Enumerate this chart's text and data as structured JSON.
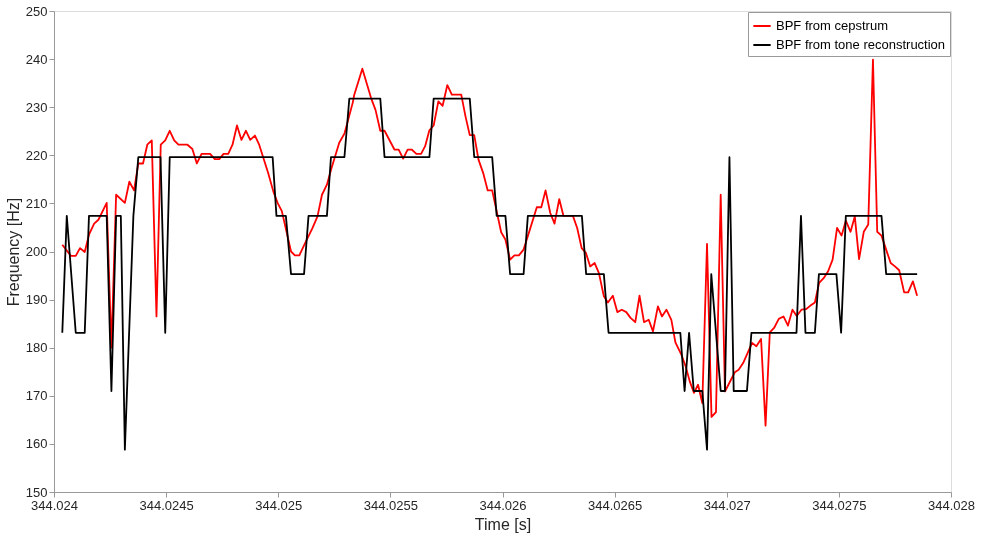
{
  "chart_data": {
    "type": "line",
    "xlabel": "Time [s]",
    "ylabel": "Frequency [Hz]",
    "xlim": [
      344.024,
      344.028
    ],
    "xticks": [
      344.024,
      344.0245,
      344.025,
      344.0255,
      344.026,
      344.0265,
      344.027,
      344.0275,
      344.028
    ],
    "ylim": [
      150,
      250
    ],
    "yticks": [
      150,
      160,
      170,
      180,
      190,
      200,
      210,
      220,
      230,
      240,
      250
    ],
    "legend": "top right",
    "series": [
      {
        "name": "BPF from cepstrum",
        "color": "#ff0000",
        "x": [
          344.024037,
          344.024075,
          344.024097,
          344.024116,
          344.024137,
          344.024156,
          344.024179,
          344.024198,
          344.024235,
          344.024256,
          344.024277,
          344.024316,
          344.024336,
          344.024357,
          344.024376,
          344.024397,
          344.024416,
          344.024436,
          344.024457,
          344.024476,
          344.024496,
          344.024516,
          344.024536,
          344.024555,
          344.024595,
          344.024617,
          344.024637,
          344.024658,
          344.024696,
          344.024717,
          344.024737,
          344.024756,
          344.024777,
          344.024796,
          344.024816,
          344.024836,
          344.024856,
          344.024875,
          344.024896,
          344.024915,
          344.024955,
          344.024978,
          344.024997,
          344.025016,
          344.025057,
          344.025074,
          344.025094,
          344.025116,
          344.025153,
          344.025175,
          344.025195,
          344.025217,
          344.025238,
          344.025272,
          344.025295,
          344.025332,
          344.025339,
          344.025375,
          344.025414,
          344.025434,
          344.025455,
          344.025474,
          344.025518,
          344.025537,
          344.025557,
          344.025577,
          344.025595,
          344.025616,
          344.025637,
          344.025655,
          344.025674,
          344.025693,
          344.025714,
          344.025733,
          344.025754,
          344.025774,
          344.025816,
          344.025835,
          344.025854,
          344.025874,
          344.025893,
          344.025914,
          344.025934,
          344.025954,
          344.025994,
          344.026013,
          344.026034,
          344.026053,
          344.026073,
          344.026094,
          344.026113,
          344.026153,
          344.026173,
          344.026192,
          344.026213,
          344.026232,
          344.026253,
          344.026272,
          344.026314,
          344.026333,
          344.026353,
          344.026372,
          344.026391,
          344.026411,
          344.02643,
          344.026452,
          344.02647,
          344.026492,
          344.026512,
          344.026532,
          344.026552,
          344.026571,
          344.026592,
          344.026611,
          344.026631,
          344.026652,
          344.026671,
          344.026693,
          344.026711,
          344.026731,
          344.026753,
          344.026771,
          344.026798,
          344.026817,
          344.026835,
          344.026854,
          344.026872,
          344.026891,
          344.026912,
          344.026932,
          344.026952,
          344.026973,
          344.026992,
          344.027036,
          344.027053,
          344.027073,
          344.027113,
          344.027132,
          344.027153,
          344.027173,
          344.027192,
          344.027211,
          344.027232,
          344.027253,
          344.027273,
          344.027293,
          344.027312,
          344.027333,
          344.027353,
          344.027372,
          344.027393,
          344.027412,
          344.027433,
          344.027452,
          344.027472,
          344.027492,
          344.027512,
          344.027531,
          344.027552,
          344.027571,
          344.02759,
          344.027611,
          344.027631,
          344.027652,
          344.027671,
          344.02769,
          344.02771,
          344.027731,
          344.02775,
          344.027769,
          344.027791,
          344.027809,
          344.02783,
          344.027849
        ],
        "values": [
          201.4,
          199.1,
          199.1,
          200.7,
          199.9,
          203.5,
          205.8,
          206.6,
          210.1,
          180,
          211.8,
          210.1,
          214.5,
          212.7,
          218.3,
          218.3,
          222.2,
          223.1,
          186.5,
          222.2,
          223.1,
          225.1,
          223.1,
          222.2,
          222.2,
          221.3,
          218.3,
          220.3,
          220.3,
          219.2,
          219.2,
          220.3,
          220.3,
          222.2,
          226.2,
          223.2,
          225.1,
          223.2,
          224.1,
          222.2,
          216.3,
          212.5,
          210.1,
          208.4,
          200.0,
          199.2,
          199.2,
          201.4,
          204.9,
          207.3,
          211.8,
          213.9,
          217.4,
          222.6,
          224.5,
          230.9,
          232.6,
          238.0,
          231.9,
          229.4,
          225.1,
          225.1,
          221.2,
          221.2,
          219.3,
          221.2,
          221.2,
          220.3,
          220.3,
          221.9,
          225.2,
          226.2,
          231.2,
          230.3,
          234.6,
          232.6,
          232.6,
          228.1,
          224.2,
          224.2,
          219.1,
          216.3,
          212.7,
          212.7,
          204.0,
          202.5,
          198.3,
          199.2,
          199.2,
          200.4,
          203.2,
          209.2,
          209.2,
          212.7,
          208.0,
          205.8,
          210.9,
          207.4,
          207.4,
          204.9,
          200.7,
          199.7,
          196.9,
          197.6,
          195.5,
          190.7,
          189.4,
          190.8,
          187.4,
          187.9,
          187.4,
          186.2,
          185.3,
          190.8,
          185.3,
          185.8,
          183.4,
          188.6,
          186.5,
          187.9,
          185.8,
          181.1,
          178.5,
          176.1,
          173.0,
          170.6,
          172.3,
          168.5,
          201.6,
          165.6,
          166.6,
          211.8,
          170.9,
          174.9,
          175.4,
          176.8,
          181.0,
          180.3,
          181.8,
          163.8,
          183.2,
          184.1,
          186.0,
          186.5,
          184.6,
          187.9,
          186.6,
          187.9,
          188.0,
          188.7,
          189.4,
          193.5,
          194.5,
          195.9,
          198.3,
          204.9,
          203.3,
          206.4,
          204.1,
          207.3,
          198.4,
          204.1,
          205.6,
          239.9,
          204.1,
          203.3,
          200.5,
          197.6,
          196.9,
          196.1,
          191.5,
          191.5,
          193.8,
          190.8
        ]
      },
      {
        "name": "BPF from tone reconstruction",
        "color": "#000000",
        "x": [
          344.024037,
          344.024057,
          344.024097,
          344.024137,
          344.024156,
          344.024235,
          344.024256,
          344.024277,
          344.024298,
          344.024316,
          344.024354,
          344.024376,
          344.024475,
          344.024496,
          344.024516,
          344.024975,
          344.024992,
          344.025034,
          344.025057,
          344.025115,
          344.025135,
          344.025217,
          344.025235,
          344.025295,
          344.025317,
          344.025455,
          344.025474,
          344.025674,
          344.025693,
          344.025854,
          344.025874,
          344.025954,
          344.025974,
          344.026013,
          344.026034,
          344.026094,
          344.026113,
          344.026354,
          344.026373,
          344.026452,
          344.026473,
          344.026793,
          344.026812,
          344.026832,
          344.026853,
          344.026891,
          344.026912,
          344.026931,
          344.026973,
          344.026992,
          344.027012,
          344.027031,
          344.02709,
          344.02711,
          344.027311,
          344.027331,
          344.027351,
          344.027393,
          344.027411,
          344.027489,
          344.02751,
          344.027531,
          344.02769,
          344.027711,
          344.027849
        ],
        "values": [
          183.1,
          207.4,
          183.1,
          183.1,
          207.4,
          207.4,
          171.0,
          207.4,
          207.4,
          158.8,
          207.4,
          219.6,
          219.6,
          183.1,
          219.6,
          219.6,
          207.4,
          207.4,
          195.3,
          195.3,
          207.4,
          207.4,
          219.6,
          219.6,
          231.8,
          231.8,
          219.6,
          219.6,
          231.8,
          231.8,
          219.6,
          219.6,
          207.4,
          207.4,
          195.3,
          195.3,
          207.4,
          207.4,
          195.3,
          195.3,
          183.1,
          183.1,
          171.0,
          183.1,
          171.0,
          171.0,
          158.8,
          195.3,
          171.0,
          171.0,
          219.6,
          171.0,
          171.0,
          183.1,
          183.1,
          207.4,
          183.1,
          183.1,
          195.3,
          195.3,
          183.1,
          207.4,
          207.4,
          195.3,
          195.3
        ]
      }
    ]
  }
}
